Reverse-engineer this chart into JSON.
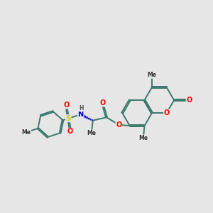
{
  "background_color": "#e6e6e6",
  "bond_color": "#3a7a6a",
  "bond_width": 1.4,
  "atom_colors": {
    "O": "#ff0000",
    "N": "#0000cc",
    "S": "#cccc00",
    "C": "#000000",
    "H": "#555555"
  },
  "font_size": 7.0,
  "fig_width": 3.0,
  "fig_height": 3.0,
  "xlim": [
    0,
    10
  ],
  "ylim": [
    0,
    10
  ]
}
